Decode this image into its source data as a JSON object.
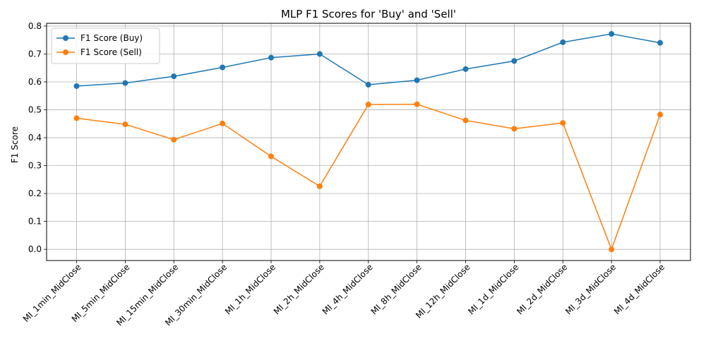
{
  "chart_data": {
    "type": "line",
    "title": "MLP F1 Scores for 'Buy' and 'Sell'",
    "xlabel": "",
    "ylabel": "F1 Score",
    "categories": [
      "MI_1min_MidClose",
      "MI_5min_MidClose",
      "MI_15min_MidClose",
      "MI_30min_MidClose",
      "MI_1h_MidClose",
      "MI_2h_MidClose",
      "MI_4h_MidClose",
      "MI_8h_MidClose",
      "MI_12h_MidClose",
      "MI_1d_MidClose",
      "MI_2d_MidClose",
      "MI_3d_MidClose",
      "MI_4d_MidClose"
    ],
    "series": [
      {
        "name": "F1 Score (Buy)",
        "color": "#1f77b4",
        "values": [
          0.585,
          0.596,
          0.62,
          0.652,
          0.687,
          0.7,
          0.59,
          0.606,
          0.646,
          0.675,
          0.742,
          0.772,
          0.74
        ]
      },
      {
        "name": "F1 Score (Sell)",
        "color": "#ff7f0e",
        "values": [
          0.47,
          0.448,
          0.393,
          0.451,
          0.333,
          0.226,
          0.519,
          0.52,
          0.462,
          0.432,
          0.453,
          0.0,
          0.483
        ]
      }
    ],
    "ylim": [
      -0.04,
      0.81
    ],
    "yticks": [
      0.0,
      0.1,
      0.2,
      0.3,
      0.4,
      0.5,
      0.6,
      0.7,
      0.8
    ],
    "ytick_labels": [
      "0.0",
      "0.1",
      "0.2",
      "0.3",
      "0.4",
      "0.5",
      "0.6",
      "0.7",
      "0.8"
    ],
    "grid": true,
    "legend_position": "top-left"
  }
}
